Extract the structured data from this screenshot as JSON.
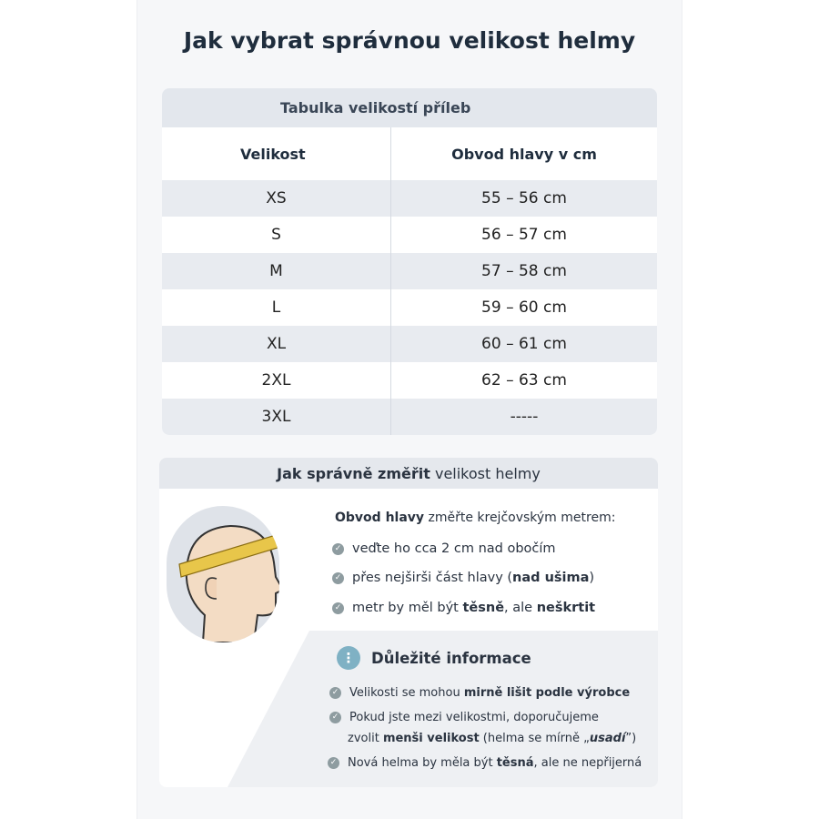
{
  "title": "Jak vybrat správnou velikost helmy",
  "table": {
    "caption": "Tabulka velikostí příleb",
    "headers": [
      "Velikost",
      "Obvod hlavy v cm"
    ],
    "rows": [
      [
        "XS",
        "55 – 56 cm"
      ],
      [
        "S",
        "56 – 57 cm"
      ],
      [
        "M",
        "57 – 58 cm"
      ],
      [
        "L",
        "59 – 60 cm"
      ],
      [
        "XL",
        "60 – 61 cm"
      ],
      [
        "2XL",
        "62 – 63 cm"
      ],
      [
        "3XL",
        "-----"
      ]
    ]
  },
  "measure": {
    "title_bold": "Jak správně změřit",
    "title_rest": " velikost helmy",
    "lead_bold": "Obvod hlavy",
    "lead_rest": " změřte krejčovským metrem:",
    "b1": "veďte ho cca 2 cm nad obočím",
    "b2a": "přes nejširši část hlavy (",
    "b2b": "nad ušima",
    "b2c": ")",
    "b3a": "metr by měl být ",
    "b3b": "těsně",
    "b3c": ", ale ",
    "b3d": "neškrtit"
  },
  "info": {
    "title": "Důležité informace",
    "icon": "info-icon",
    "i1a": "Velikosti se mohou ",
    "i1b": "mirně lišit podle výrobce",
    "i2a": "Pokud jste mezi velikostmi, doporučujeme",
    "i2b": "zvolit ",
    "i2c": "menši velikost",
    "i2d": " (helma se mírně „",
    "i2e": "usadí",
    "i2f": "”)",
    "i3a": "Nová helma by měla být ",
    "i3b": "těsná",
    "i3c": ", ale ne nepřijerná"
  },
  "colors": {
    "accent": "#7fb1c4",
    "check": "#8e9ca0",
    "tape": "#e8c64a"
  }
}
